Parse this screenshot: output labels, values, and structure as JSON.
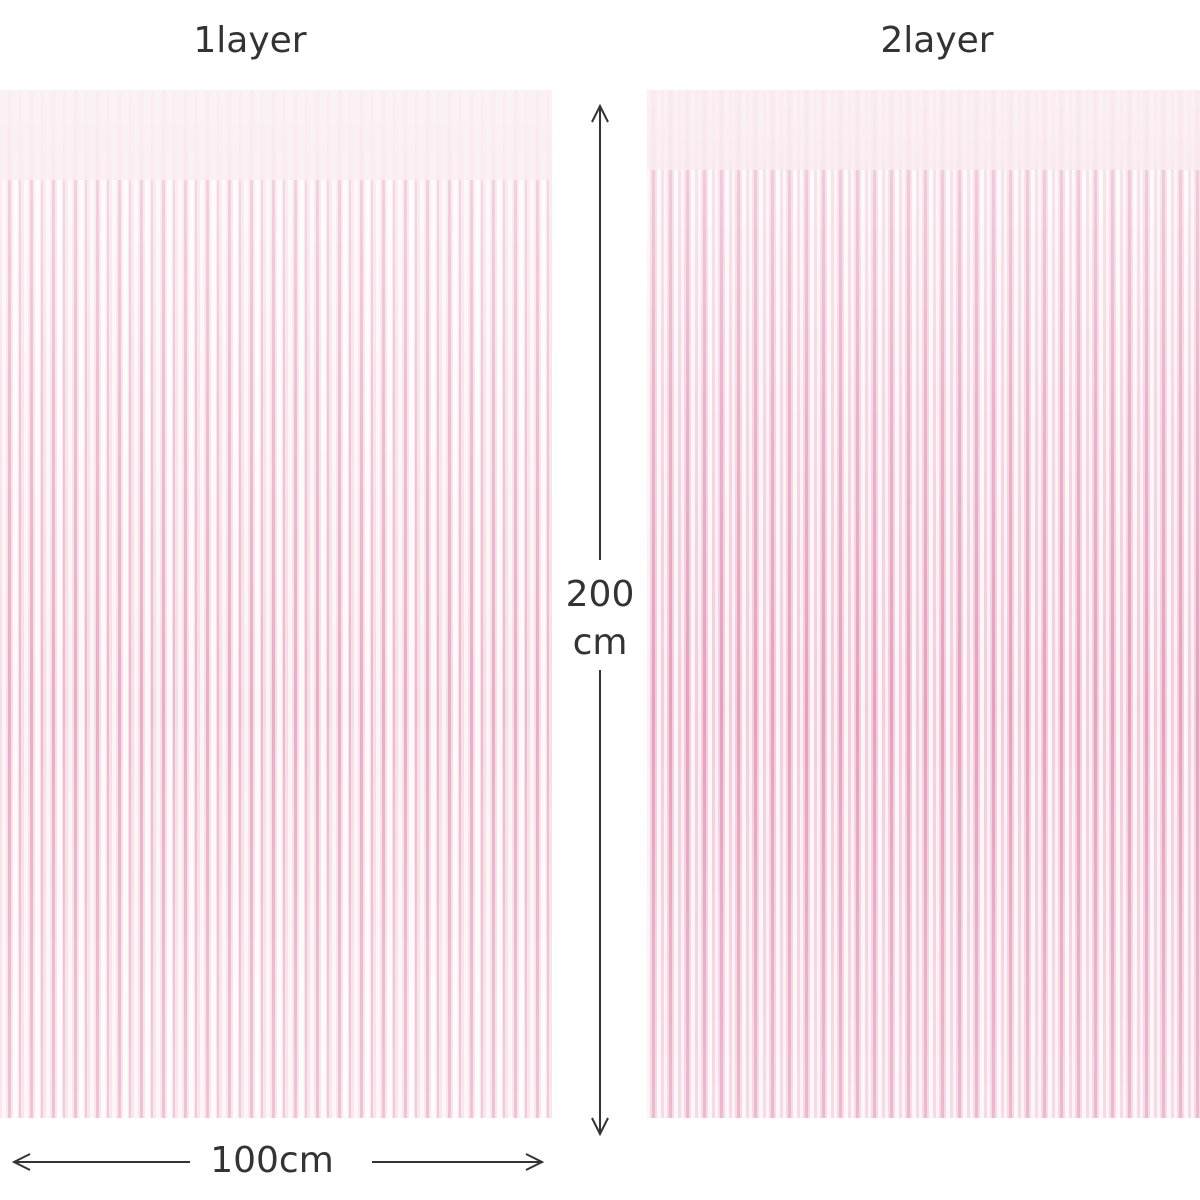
{
  "panels": [
    {
      "label": "1layer"
    },
    {
      "label": "2layer"
    }
  ],
  "dimensions": {
    "height": {
      "lines": [
        "200",
        "cm"
      ]
    },
    "width": "100cm"
  }
}
